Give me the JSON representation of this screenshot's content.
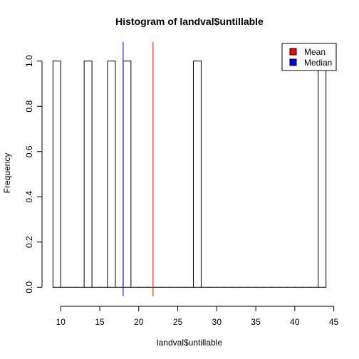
{
  "chart_data": {
    "type": "bar",
    "title": "Histogram of landval$untillable",
    "xlabel": "landval$untillable",
    "ylabel": "Frequency",
    "xlim": [
      9,
      44
    ],
    "ylim": [
      0,
      1
    ],
    "bin_width": 1,
    "bins": [
      {
        "start": 9,
        "end": 10,
        "count": 1
      },
      {
        "start": 10,
        "end": 11,
        "count": 0
      },
      {
        "start": 11,
        "end": 12,
        "count": 0
      },
      {
        "start": 12,
        "end": 13,
        "count": 0
      },
      {
        "start": 13,
        "end": 14,
        "count": 1
      },
      {
        "start": 14,
        "end": 15,
        "count": 0
      },
      {
        "start": 15,
        "end": 16,
        "count": 0
      },
      {
        "start": 16,
        "end": 17,
        "count": 1
      },
      {
        "start": 17,
        "end": 18,
        "count": 0
      },
      {
        "start": 18,
        "end": 19,
        "count": 1
      },
      {
        "start": 19,
        "end": 20,
        "count": 0
      },
      {
        "start": 20,
        "end": 21,
        "count": 0
      },
      {
        "start": 21,
        "end": 22,
        "count": 0
      },
      {
        "start": 22,
        "end": 23,
        "count": 0
      },
      {
        "start": 23,
        "end": 24,
        "count": 0
      },
      {
        "start": 24,
        "end": 25,
        "count": 0
      },
      {
        "start": 25,
        "end": 26,
        "count": 0
      },
      {
        "start": 26,
        "end": 27,
        "count": 0
      },
      {
        "start": 27,
        "end": 28,
        "count": 1
      },
      {
        "start": 28,
        "end": 29,
        "count": 0
      },
      {
        "start": 29,
        "end": 30,
        "count": 0
      },
      {
        "start": 30,
        "end": 31,
        "count": 0
      },
      {
        "start": 31,
        "end": 32,
        "count": 0
      },
      {
        "start": 32,
        "end": 33,
        "count": 0
      },
      {
        "start": 33,
        "end": 34,
        "count": 0
      },
      {
        "start": 34,
        "end": 35,
        "count": 0
      },
      {
        "start": 35,
        "end": 36,
        "count": 0
      },
      {
        "start": 36,
        "end": 37,
        "count": 0
      },
      {
        "start": 37,
        "end": 38,
        "count": 0
      },
      {
        "start": 38,
        "end": 39,
        "count": 0
      },
      {
        "start": 39,
        "end": 40,
        "count": 0
      },
      {
        "start": 40,
        "end": 41,
        "count": 0
      },
      {
        "start": 41,
        "end": 42,
        "count": 0
      },
      {
        "start": 42,
        "end": 43,
        "count": 0
      },
      {
        "start": 43,
        "end": 44,
        "count": 1
      }
    ],
    "x_ticks": [
      10,
      15,
      20,
      25,
      30,
      35,
      40,
      45
    ],
    "y_ticks": [
      "0.0",
      "0.2",
      "0.4",
      "0.6",
      "0.8",
      "1.0"
    ],
    "reference_lines": [
      {
        "name": "Mean",
        "x": 21.83,
        "color": "#ff0000"
      },
      {
        "name": "Median",
        "x": 18,
        "color": "#0000ff"
      }
    ],
    "legend": {
      "placement": "top-right",
      "entries": [
        {
          "label": "Mean",
          "color": "#ff0000"
        },
        {
          "label": "Median",
          "color": "#0000ff"
        }
      ]
    },
    "grid": false
  }
}
